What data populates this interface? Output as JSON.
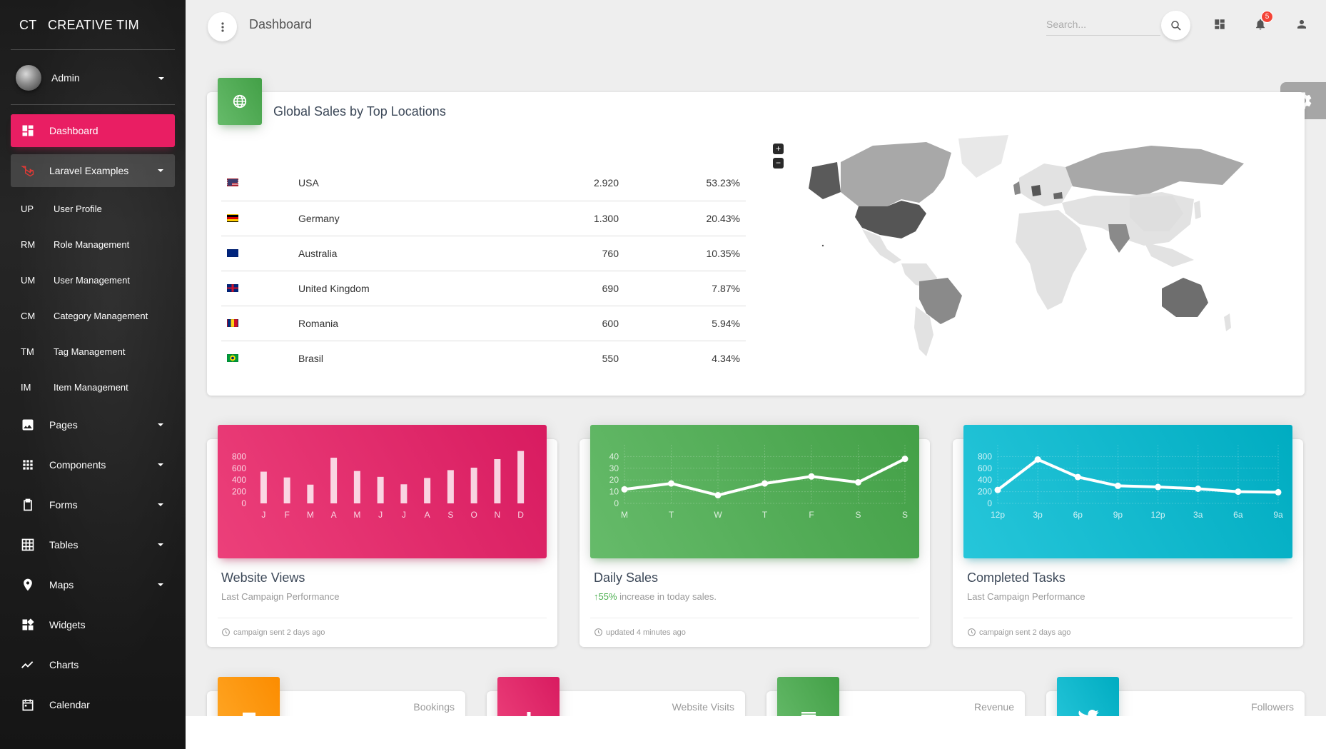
{
  "sidebar": {
    "logo_mini": "CT",
    "logo_text": "CREATIVE TIM",
    "user_name": "Admin",
    "items": [
      {
        "label": "Dashboard",
        "icon": "dashboard-icon",
        "active": true
      },
      {
        "label": "Laravel Examples",
        "icon": "laravel-icon",
        "open": true
      },
      {
        "abbr": "UP",
        "label": "User Profile"
      },
      {
        "abbr": "RM",
        "label": "Role Management"
      },
      {
        "abbr": "UM",
        "label": "User Management"
      },
      {
        "abbr": "CM",
        "label": "Category Management"
      },
      {
        "abbr": "TM",
        "label": "Tag Management"
      },
      {
        "abbr": "IM",
        "label": "Item Management"
      },
      {
        "label": "Pages",
        "icon": "image-icon"
      },
      {
        "label": "Components",
        "icon": "apps-icon"
      },
      {
        "label": "Forms",
        "icon": "clipboard-icon"
      },
      {
        "label": "Tables",
        "icon": "grid-icon"
      },
      {
        "label": "Maps",
        "icon": "place-icon"
      },
      {
        "label": "Widgets",
        "icon": "widgets-icon"
      },
      {
        "label": "Charts",
        "icon": "timeline-icon"
      },
      {
        "label": "Calendar",
        "icon": "date-range-icon"
      }
    ]
  },
  "navbar": {
    "title": "Dashboard",
    "search_placeholder": "Search...",
    "notification_count": "5"
  },
  "global_sales": {
    "title": "Global Sales by Top Locations",
    "rows": [
      {
        "country": "USA",
        "value": "2.920",
        "percent": "53.23%",
        "flag": "us"
      },
      {
        "country": "Germany",
        "value": "1.300",
        "percent": "20.43%",
        "flag": "de"
      },
      {
        "country": "Australia",
        "value": "760",
        "percent": "10.35%",
        "flag": "au"
      },
      {
        "country": "United Kingdom",
        "value": "690",
        "percent": "7.87%",
        "flag": "gb"
      },
      {
        "country": "Romania",
        "value": "600",
        "percent": "5.94%",
        "flag": "ro"
      },
      {
        "country": "Brasil",
        "value": "550",
        "percent": "4.34%",
        "flag": "br"
      }
    ],
    "zoom_in": "+",
    "zoom_out": "−"
  },
  "chart_data": [
    {
      "type": "bar",
      "title": "Website Views",
      "subtitle": "Last Campaign Performance",
      "footer": "campaign sent 2 days ago",
      "categories": [
        "J",
        "F",
        "M",
        "A",
        "M",
        "J",
        "J",
        "A",
        "S",
        "O",
        "N",
        "D"
      ],
      "values": [
        542,
        443,
        320,
        780,
        553,
        453,
        326,
        434,
        568,
        610,
        756,
        895
      ],
      "yticks": [
        "800",
        "600",
        "400",
        "200",
        "0"
      ],
      "ylim": [
        0,
        1000
      ],
      "color": "#e91e63"
    },
    {
      "type": "line",
      "title": "Daily Sales",
      "subtitle_highlight": "55%",
      "subtitle": " increase in today sales.",
      "footer": "updated 4 minutes ago",
      "categories": [
        "M",
        "T",
        "W",
        "T",
        "F",
        "S",
        "S"
      ],
      "values": [
        12,
        17,
        7,
        17,
        23,
        18,
        38
      ],
      "yticks": [
        "40",
        "30",
        "20",
        "10",
        "0"
      ],
      "ylim": [
        0,
        50
      ],
      "color": "#4caf50"
    },
    {
      "type": "line",
      "title": "Completed Tasks",
      "subtitle": "Last Campaign Performance",
      "footer": "campaign sent 2 days ago",
      "categories": [
        "12p",
        "3p",
        "6p",
        "9p",
        "12p",
        "3a",
        "6a",
        "9a"
      ],
      "values": [
        230,
        750,
        450,
        300,
        280,
        250,
        200,
        190
      ],
      "yticks": [
        "800",
        "600",
        "400",
        "200",
        "0"
      ],
      "ylim": [
        0,
        1000
      ],
      "color": "#00bcd4"
    }
  ],
  "stats": [
    {
      "label": "Bookings",
      "icon": "weekend-icon",
      "color": "orange"
    },
    {
      "label": "Website Visits",
      "icon": "equalizer-icon",
      "color": "pink"
    },
    {
      "label": "Revenue",
      "icon": "store-icon",
      "color": "green"
    },
    {
      "label": "Followers",
      "icon": "twitter-icon",
      "color": "cyan"
    }
  ]
}
